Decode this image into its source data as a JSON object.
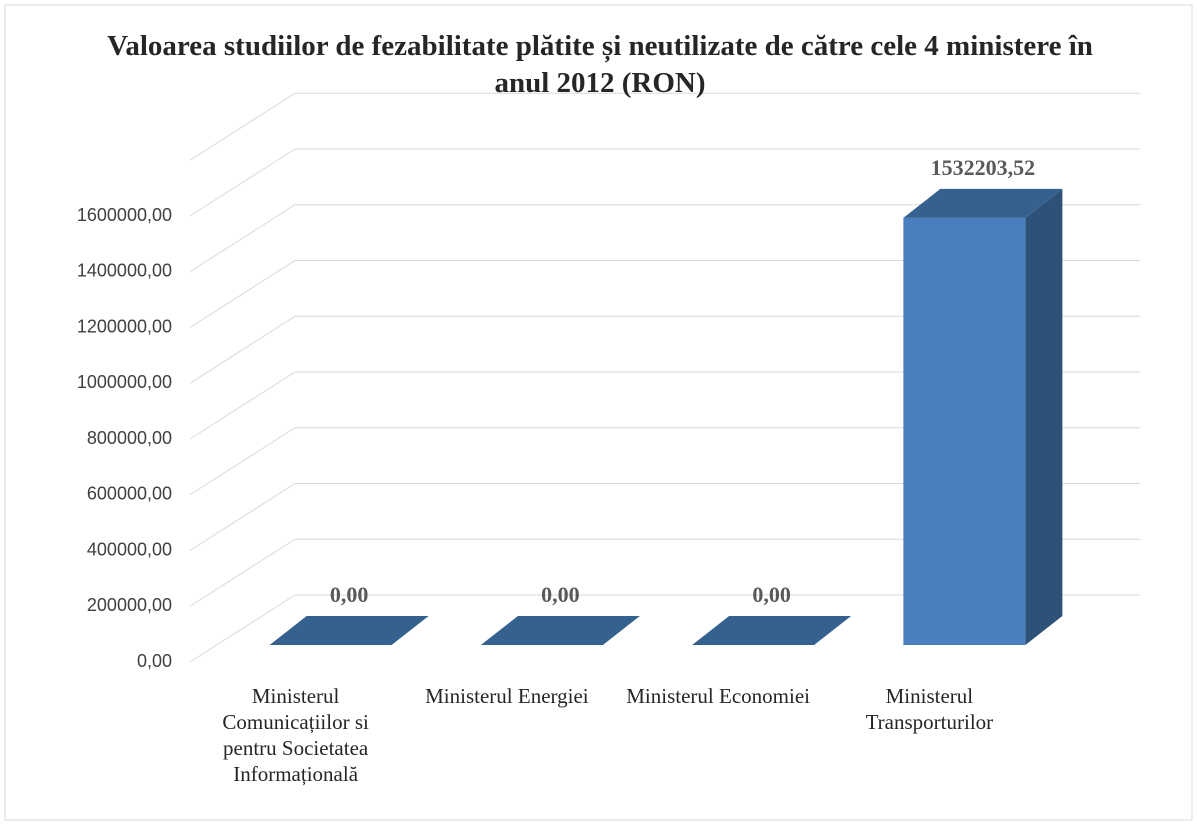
{
  "chart_data": {
    "type": "bar3d",
    "title": "Valoarea studiilor de fezabilitate plătite și neutilizate de către cele 4 ministere în anul 2012 (RON)",
    "categories": [
      "Ministerul Comunicațiilor si pentru Societatea Informațională",
      "Ministerul Energiei",
      "Ministerul Economiei",
      "Ministerul Transporturilor"
    ],
    "values": [
      0,
      0,
      0,
      1532203.52
    ],
    "value_labels": [
      "0,00",
      "0,00",
      "0,00",
      "1532203,52"
    ],
    "color": "#4a7ebf",
    "ylim": [
      0,
      1800000
    ],
    "yticks": [
      {
        "value": 0,
        "label": "0,00"
      },
      {
        "value": 200000,
        "label": "200000,00"
      },
      {
        "value": 400000,
        "label": "400000,00"
      },
      {
        "value": 600000,
        "label": "600000,00"
      },
      {
        "value": 800000,
        "label": "800000,00"
      },
      {
        "value": 1000000,
        "label": "1000000,00"
      },
      {
        "value": 1200000,
        "label": "1200000,00"
      },
      {
        "value": 1400000,
        "label": "1400000,00"
      },
      {
        "value": 1600000,
        "label": "1600000,00"
      }
    ],
    "grid": true
  }
}
